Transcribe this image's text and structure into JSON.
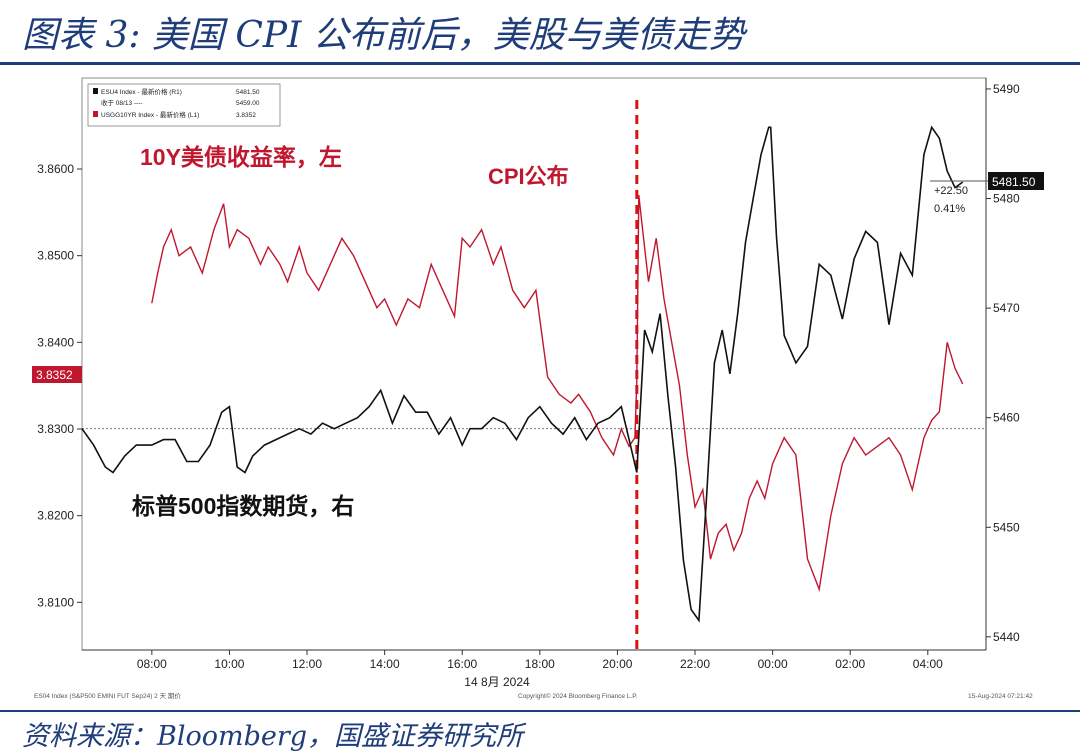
{
  "title": "图表 3:  美国 CPI 公布前后，美股与美债走势",
  "source": "资料来源：Bloomberg，国盛证券研究所",
  "colors": {
    "yield": "#c0172f",
    "spx": "#111111",
    "event": "#e01010",
    "brand": "#1f3d7a"
  },
  "chart_data": {
    "type": "line",
    "legend": {
      "placement": "top-left",
      "entries": [
        {
          "label": "ESU4 Index - 最新价格 (R1)",
          "value": "5481.50"
        },
        {
          "label": "收于 08/13 ----",
          "value": "5459.00"
        },
        {
          "label": "USGG10YR Index - 最新价格 (L1)",
          "value": "3.8352"
        }
      ]
    },
    "annotations": {
      "yield_label": "10Y美债收益率，左",
      "cpi_label": "CPI公布",
      "spx_label": "标普500指数期货，右",
      "left_last": "3.8352",
      "right_last": "5481.50",
      "change": "+22.50",
      "change_pct": "0.41%",
      "footer_left": "ES04 Index (S&P500 EMINI FUT Sep24) 2 天 期价",
      "footer_mid": "Copyright© 2024 Bloomberg Finance L.P.",
      "footer_right": "15-Aug-2024 07:21:42"
    },
    "x_ticks": [
      "08:00",
      "10:00",
      "12:00",
      "14:00",
      "16:00",
      "18:00",
      "20:00",
      "22:00",
      "00:00",
      "02:00",
      "04:00"
    ],
    "x_tick_hours": [
      8,
      10,
      12,
      14,
      16,
      18,
      20,
      22,
      24,
      26,
      28
    ],
    "x_date_label": "14 8月 2024",
    "xlim": [
      6.2,
      29.5
    ],
    "cpi_release_hour": 20.5,
    "left_axis": {
      "ticks": [
        "3.8600",
        "3.8500",
        "3.8400",
        "3.8300",
        "3.8200",
        "3.8100"
      ],
      "ylim": [
        3.8045,
        3.8705
      ]
    },
    "right_axis": {
      "ticks": [
        "5490",
        "5480",
        "5470",
        "5460",
        "5450",
        "5440"
      ],
      "ylim": [
        5438.8,
        5491.0
      ]
    },
    "reference_line": {
      "axis": "right",
      "value": 5459.0
    },
    "series": [
      {
        "axis": "left",
        "x": [
          8.0,
          8.15,
          8.3,
          8.5,
          8.7,
          9.0,
          9.3,
          9.6,
          9.85,
          10.0,
          10.2,
          10.5,
          10.8,
          11.0,
          11.3,
          11.5,
          11.8,
          12.0,
          12.3,
          12.6,
          12.9,
          13.2,
          13.5,
          13.8,
          14.0,
          14.3,
          14.6,
          14.9,
          15.2,
          15.5,
          15.8,
          16.0,
          16.2,
          16.5,
          16.8,
          17.0,
          17.3,
          17.6,
          17.9,
          18.2,
          18.5,
          18.8,
          19.0,
          19.3,
          19.6,
          19.9,
          20.1,
          20.3,
          20.45,
          20.5,
          20.55,
          20.65,
          20.8,
          21.0,
          21.2,
          21.4,
          21.6,
          21.8,
          22.0,
          22.2,
          22.4,
          22.6,
          22.8,
          23.0,
          23.2,
          23.4,
          23.6,
          23.8,
          24.0,
          24.3,
          24.6,
          24.9,
          25.2,
          25.5,
          25.8,
          26.1,
          26.4,
          26.7,
          27.0,
          27.3,
          27.6,
          27.9,
          28.1,
          28.3,
          28.5,
          28.7,
          28.9
        ],
        "y": [
          3.8445,
          3.848,
          3.851,
          3.853,
          3.85,
          3.851,
          3.848,
          3.853,
          3.856,
          3.851,
          3.853,
          3.852,
          3.849,
          3.851,
          3.849,
          3.847,
          3.851,
          3.848,
          3.846,
          3.849,
          3.852,
          3.85,
          3.847,
          3.844,
          3.845,
          3.842,
          3.845,
          3.844,
          3.849,
          3.846,
          3.843,
          3.852,
          3.851,
          3.853,
          3.849,
          3.851,
          3.846,
          3.844,
          3.846,
          3.836,
          3.834,
          3.833,
          3.834,
          3.832,
          3.829,
          3.827,
          3.83,
          3.828,
          3.829,
          3.8355,
          3.857,
          3.853,
          3.847,
          3.852,
          3.845,
          3.84,
          3.835,
          3.827,
          3.821,
          3.823,
          3.815,
          3.818,
          3.819,
          3.816,
          3.818,
          3.822,
          3.824,
          3.822,
          3.826,
          3.829,
          3.827,
          3.815,
          3.8115,
          3.82,
          3.826,
          3.829,
          3.827,
          3.828,
          3.829,
          3.827,
          3.823,
          3.829,
          3.831,
          3.832,
          3.84,
          3.837,
          3.8352
        ]
      },
      {
        "axis": "right",
        "x": [
          6.2,
          6.5,
          6.8,
          7.0,
          7.3,
          7.6,
          8.0,
          8.3,
          8.6,
          8.9,
          9.2,
          9.5,
          9.8,
          10.0,
          10.2,
          10.4,
          10.6,
          10.9,
          11.2,
          11.5,
          11.8,
          12.1,
          12.4,
          12.7,
          13.0,
          13.3,
          13.6,
          13.9,
          14.2,
          14.5,
          14.8,
          15.1,
          15.4,
          15.7,
          16.0,
          16.2,
          16.5,
          16.8,
          17.1,
          17.4,
          17.7,
          18.0,
          18.3,
          18.6,
          18.9,
          19.2,
          19.5,
          19.8,
          20.1,
          20.3,
          20.5,
          20.7,
          20.9,
          21.1,
          21.3,
          21.5,
          21.7,
          21.9,
          22.1,
          22.3,
          22.5,
          22.7,
          22.9,
          23.1,
          23.3,
          23.5,
          23.7,
          23.9,
          23.95,
          24.1,
          24.3,
          24.6,
          24.9,
          25.2,
          25.5,
          25.8,
          26.1,
          26.4,
          26.7,
          27.0,
          27.3,
          27.6,
          27.9,
          28.1,
          28.3,
          28.5,
          28.7,
          28.9
        ],
        "y": [
          5459.0,
          5457.5,
          5455.5,
          5455.0,
          5456.5,
          5457.5,
          5457.5,
          5458.0,
          5458.0,
          5456.0,
          5456.0,
          5457.5,
          5460.5,
          5461.0,
          5455.5,
          5455.0,
          5456.5,
          5457.5,
          5458.0,
          5458.5,
          5459.0,
          5458.5,
          5459.5,
          5459.0,
          5459.5,
          5460.0,
          5461.0,
          5462.5,
          5459.5,
          5462.0,
          5460.5,
          5460.5,
          5458.5,
          5460.0,
          5457.5,
          5459.0,
          5459.0,
          5460.0,
          5459.5,
          5458.0,
          5460.0,
          5461.0,
          5459.5,
          5458.5,
          5460.0,
          5458.0,
          5459.5,
          5460.0,
          5461.0,
          5458.0,
          5455.0,
          5468.0,
          5466.0,
          5469.5,
          5462.0,
          5455.5,
          5447.0,
          5442.5,
          5441.5,
          5453.0,
          5465.0,
          5468.0,
          5464.0,
          5469.5,
          5476.0,
          5480.0,
          5484.0,
          5486.5,
          5486.5,
          5476.5,
          5467.5,
          5465.0,
          5466.5,
          5474.0,
          5473.0,
          5469.0,
          5474.5,
          5477.0,
          5476.0,
          5468.5,
          5475.0,
          5473.0,
          5484.0,
          5486.5,
          5485.5,
          5482.5,
          5481.0,
          5481.5
        ]
      }
    ]
  }
}
